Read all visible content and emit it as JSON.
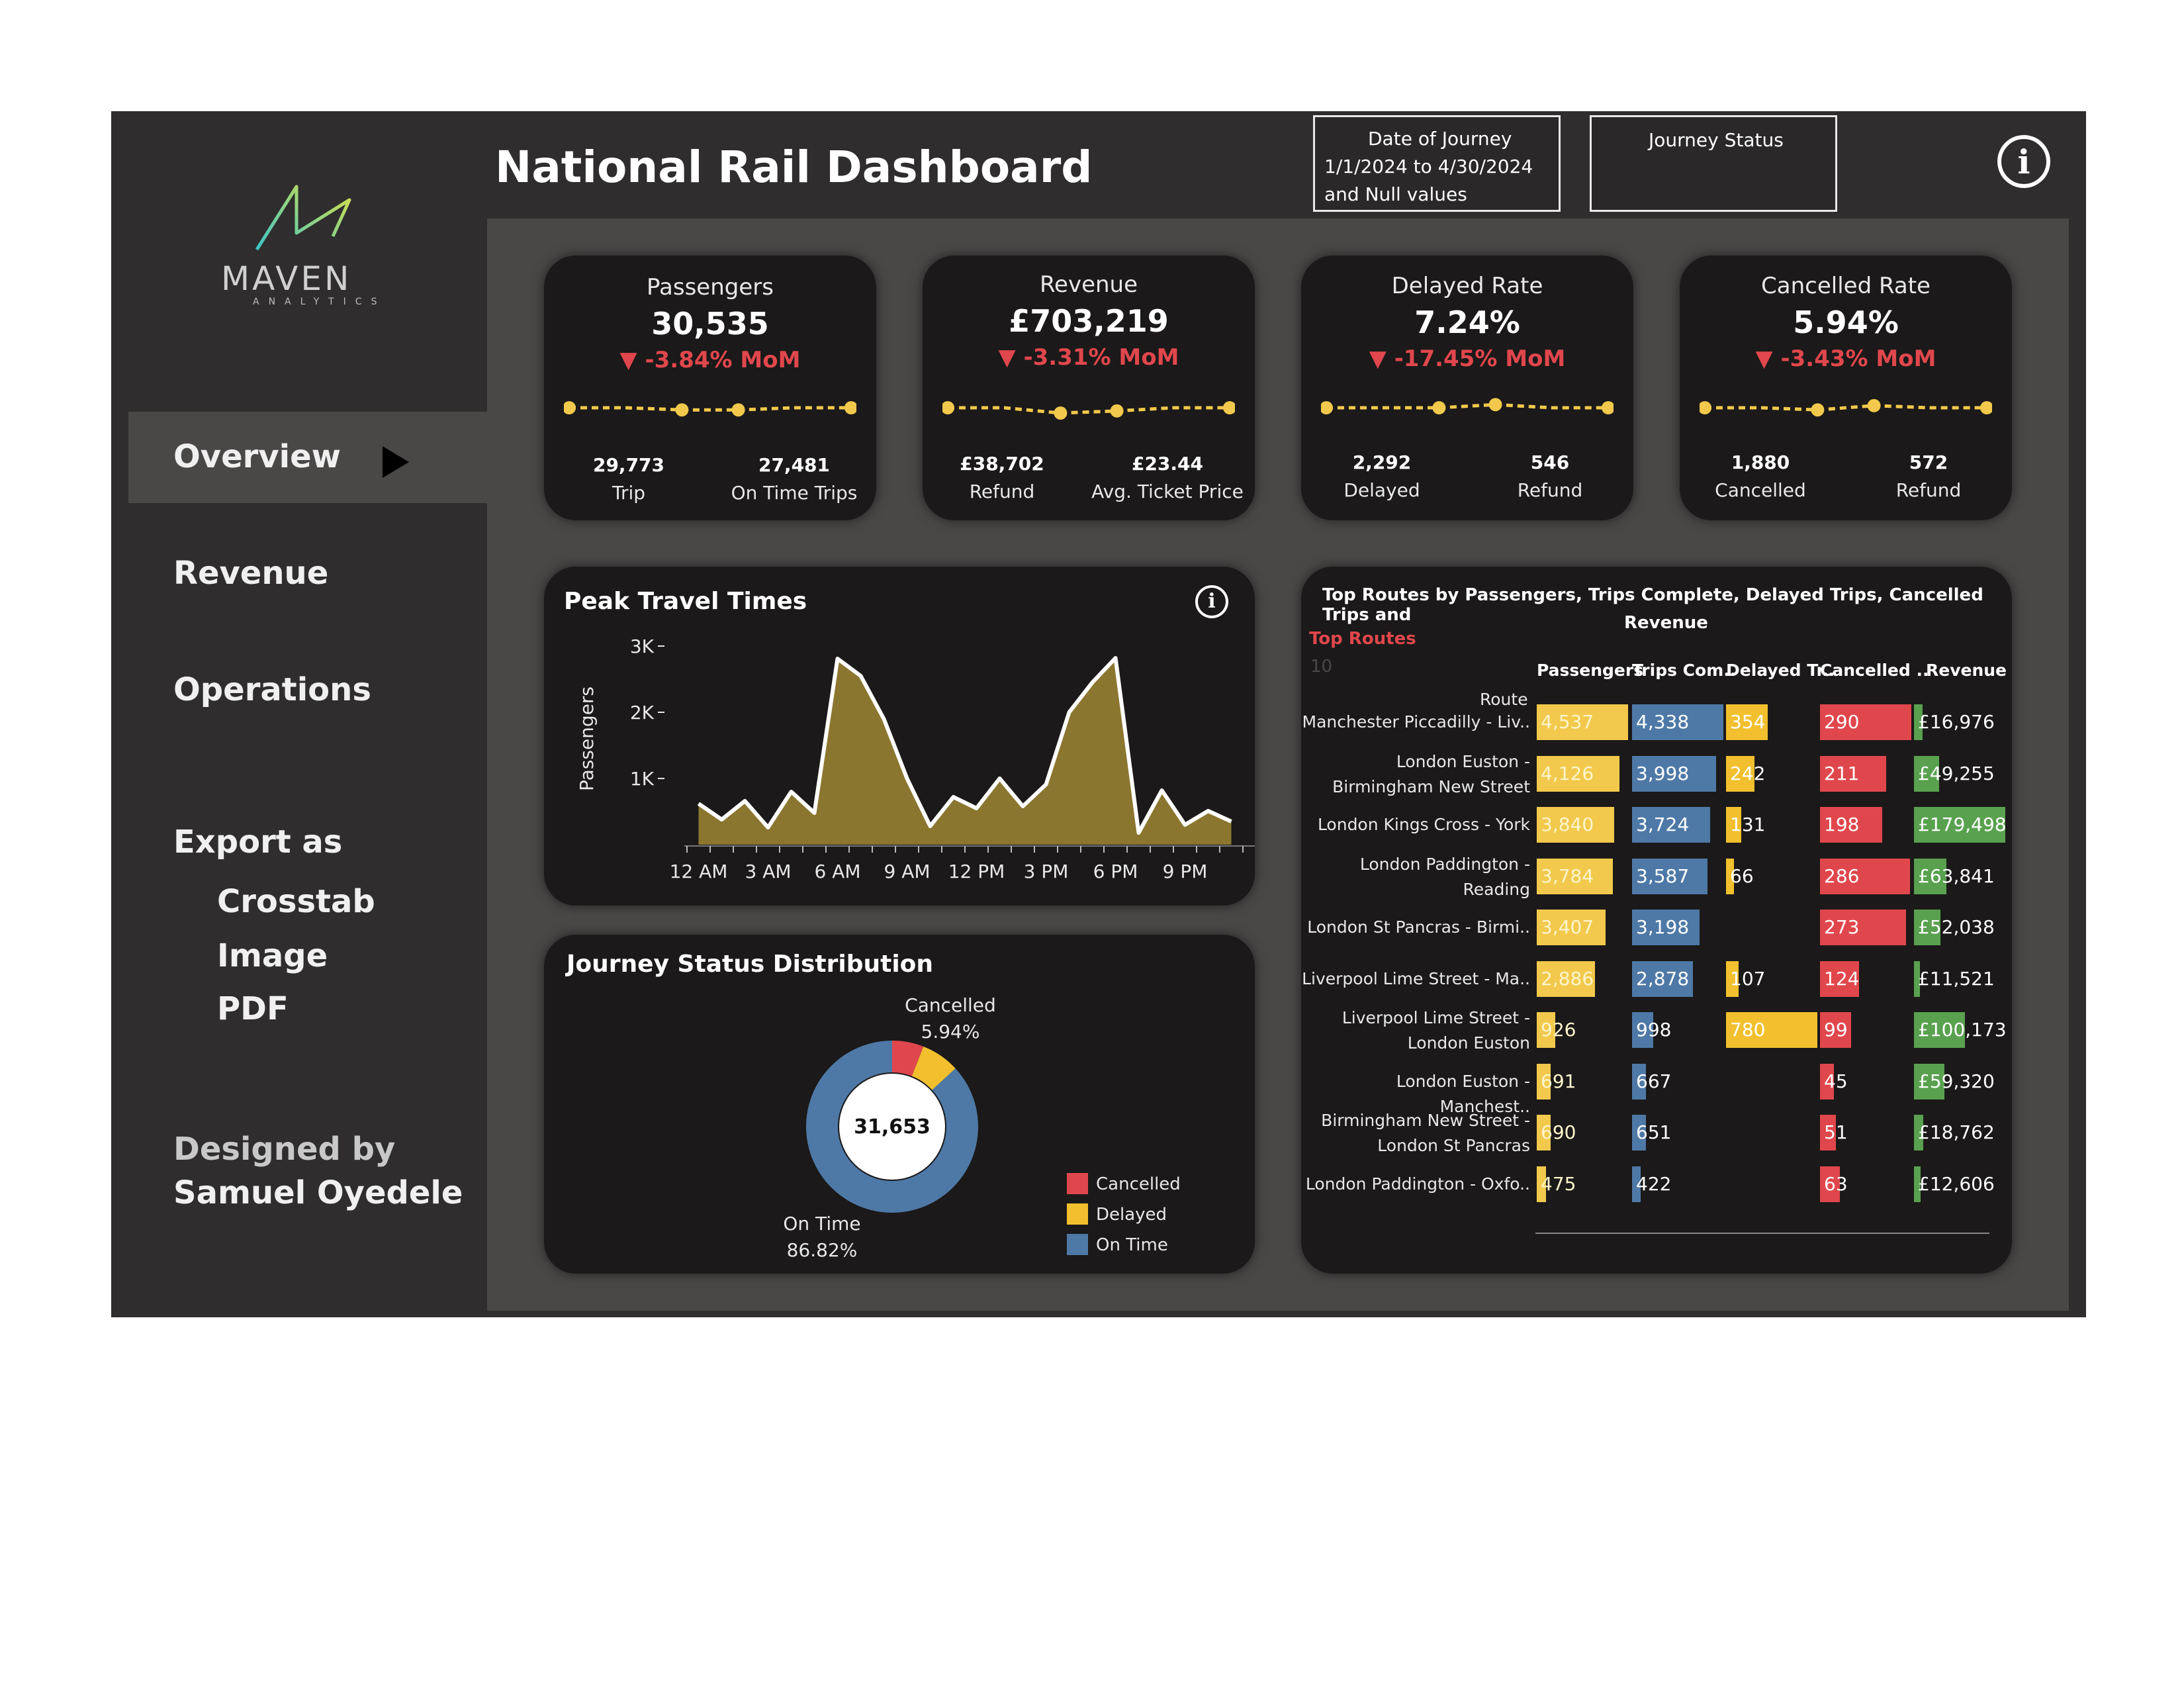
{
  "header": {
    "title": "National Rail Dashboard",
    "date_filter_label": "Date of Journey",
    "date_filter_line1": "1/1/2024 to 4/30/2024",
    "date_filter_line2": "and Null values",
    "status_filter_label": "Journey Status",
    "info_icon": "info-icon"
  },
  "sidebar": {
    "logo_text": "MAVEN",
    "logo_sub": "ANALYTICS",
    "nav": [
      "Overview",
      "Revenue",
      "Operations"
    ],
    "export_label": "Export as",
    "export_items": [
      "Crosstab",
      "Image",
      "PDF"
    ],
    "designed_by": "Designed by",
    "designer": "Samuel Oyedele"
  },
  "kpis": [
    {
      "title": "Passengers",
      "value": "30,535",
      "mom": "-3.84% MoM",
      "sub1_num": "29,773",
      "sub1_lbl": "Trip",
      "sub2_num": "27,481",
      "sub2_lbl": "On Time Trips"
    },
    {
      "title": "Revenue",
      "value": "£703,219",
      "mom": "-3.31% MoM",
      "sub1_num": "£38,702",
      "sub1_lbl": "Refund",
      "sub2_num": "£23.44",
      "sub2_lbl": "Avg. Ticket Price"
    },
    {
      "title": "Delayed Rate",
      "value": "7.24%",
      "mom": "-17.45% MoM",
      "sub1_num": "2,292",
      "sub1_lbl": "Delayed",
      "sub2_num": "546",
      "sub2_lbl": "Refund"
    },
    {
      "title": "Cancelled Rate",
      "value": "5.94%",
      "mom": "-3.43% MoM",
      "sub1_num": "1,880",
      "sub1_lbl": "Cancelled",
      "sub2_num": "572",
      "sub2_lbl": "Refund"
    }
  ],
  "peak": {
    "title": "Peak Travel Times",
    "ylabel": "Passengers",
    "yticks": [
      "3K",
      "2K",
      "1K"
    ],
    "xticks": [
      "12 AM",
      "3 AM",
      "6 AM",
      "9 AM",
      "12 PM",
      "3 PM",
      "6 PM",
      "9 PM"
    ]
  },
  "journey": {
    "title": "Journey Status Distribution",
    "total": "31,653",
    "cancelled_label": "Cancelled",
    "cancelled_pct": "5.94%",
    "ontime_label": "On Time",
    "ontime_pct": "86.82%",
    "legend": [
      "Cancelled",
      "Delayed",
      "On Time"
    ]
  },
  "routes": {
    "title_line1": "Top Routes  by Passengers, Trips Complete, Delayed Trips, Cancelled Trips and",
    "title_line2": "Revenue",
    "top_label": "Top Routes",
    "top_n": "10",
    "route_header": "Route",
    "columns": [
      "Passengers",
      "Trips Com..",
      "Delayed Tr..",
      "Cancelled ..",
      "Revenue"
    ],
    "rows": [
      {
        "route1": "Manchester Piccadilly - Liv..",
        "route2": "",
        "passengers": "4,537",
        "trips": "4,338",
        "delayed": "354",
        "cancelled": "290",
        "revenue": "£16,976"
      },
      {
        "route1": "London Euston -",
        "route2": "Birmingham New Street",
        "passengers": "4,126",
        "trips": "3,998",
        "delayed": "242",
        "cancelled": "211",
        "revenue": "£49,255"
      },
      {
        "route1": "London Kings Cross - York",
        "route2": "",
        "passengers": "3,840",
        "trips": "3,724",
        "delayed": "131",
        "cancelled": "198",
        "revenue": "£179,498"
      },
      {
        "route1": "London Paddington -",
        "route2": "Reading",
        "passengers": "3,784",
        "trips": "3,587",
        "delayed": "66",
        "cancelled": "286",
        "revenue": "£63,841"
      },
      {
        "route1": "London St Pancras - Birmi..",
        "route2": "",
        "passengers": "3,407",
        "trips": "3,198",
        "delayed": "",
        "cancelled": "273",
        "revenue": "£52,038"
      },
      {
        "route1": "Liverpool Lime Street - Ma..",
        "route2": "",
        "passengers": "2,886",
        "trips": "2,878",
        "delayed": "107",
        "cancelled": "124",
        "revenue": "£11,521"
      },
      {
        "route1": "Liverpool Lime Street -",
        "route2": "London Euston",
        "passengers": "926",
        "trips": "998",
        "delayed": "780",
        "cancelled": "99",
        "revenue": "£100,173"
      },
      {
        "route1": "London Euston - Manchest..",
        "route2": "",
        "passengers": "691",
        "trips": "667",
        "delayed": "",
        "cancelled": "45",
        "revenue": "£59,320"
      },
      {
        "route1": "Birmingham New Street -",
        "route2": "London St Pancras",
        "passengers": "690",
        "trips": "651",
        "delayed": "",
        "cancelled": "51",
        "revenue": "£18,762"
      },
      {
        "route1": "London Paddington - Oxfo..",
        "route2": "",
        "passengers": "475",
        "trips": "422",
        "delayed": "",
        "cancelled": "63",
        "revenue": "£12,606"
      }
    ]
  },
  "colors": {
    "cancelled": "#e0474c",
    "delayed": "#f2c02e",
    "ontime": "#4e79a7",
    "revenue": "#59a14f",
    "area": "#8b7630",
    "passengers_bar": "#f2c94c",
    "spark": "#f2c94c"
  },
  "chart_data": [
    {
      "type": "area",
      "title": "Peak Travel Times",
      "ylabel": "Passengers",
      "x": [
        "12 AM",
        "1 AM",
        "2 AM",
        "3 AM",
        "4 AM",
        "5 AM",
        "6 AM",
        "7 AM",
        "8 AM",
        "9 AM",
        "10 AM",
        "11 AM",
        "12 PM",
        "1 PM",
        "2 PM",
        "3 PM",
        "4 PM",
        "5 PM",
        "6 PM",
        "7 PM",
        "8 PM",
        "9 PM",
        "10 PM",
        "11 PM"
      ],
      "values": [
        620,
        380,
        660,
        260,
        800,
        480,
        2810,
        2550,
        1900,
        1000,
        280,
        720,
        550,
        1000,
        580,
        910,
        2000,
        2450,
        2820,
        180,
        820,
        300,
        510,
        350
      ],
      "ylim": [
        0,
        3000
      ]
    },
    {
      "type": "pie",
      "title": "Journey Status Distribution",
      "categories": [
        "On Time",
        "Delayed",
        "Cancelled"
      ],
      "values": [
        86.82,
        7.24,
        5.94
      ]
    },
    {
      "type": "bar",
      "title": "Top Routes  by Passengers, Trips Complete, Delayed Trips, Cancelled Trips and Revenue",
      "categories": [
        "Manchester Piccadilly - Liv..",
        "London Euston - Birmingham New Street",
        "London Kings Cross - York",
        "London Paddington - Reading",
        "London St Pancras - Birmi..",
        "Liverpool Lime Street - Ma..",
        "Liverpool Lime Street - London Euston",
        "London Euston - Manchest..",
        "Birmingham New Street - London St Pancras",
        "London Paddington - Oxfo.."
      ],
      "series": [
        {
          "name": "Passengers",
          "values": [
            4537,
            4126,
            3840,
            3784,
            3407,
            2886,
            926,
            691,
            690,
            475
          ]
        },
        {
          "name": "Trips Com..",
          "values": [
            4338,
            3998,
            3724,
            3587,
            3198,
            2878,
            998,
            667,
            651,
            422
          ]
        },
        {
          "name": "Delayed Tr..",
          "values": [
            354,
            242,
            131,
            66,
            0,
            107,
            780,
            0,
            0,
            0
          ]
        },
        {
          "name": "Cancelled ..",
          "values": [
            290,
            211,
            198,
            286,
            273,
            124,
            99,
            45,
            51,
            63
          ]
        },
        {
          "name": "Revenue",
          "values": [
            16976,
            49255,
            179498,
            63841,
            52038,
            11521,
            100173,
            59320,
            18762,
            12606
          ]
        }
      ]
    }
  ],
  "sparks": [
    [
      0,
      0,
      -0.2,
      -0.2,
      0,
      0
    ],
    [
      0,
      0,
      -0.5,
      -0.3,
      0,
      0
    ],
    [
      0,
      0,
      0,
      0.3,
      0,
      0
    ],
    [
      0,
      0,
      -0.2,
      0.2,
      0,
      0
    ]
  ]
}
